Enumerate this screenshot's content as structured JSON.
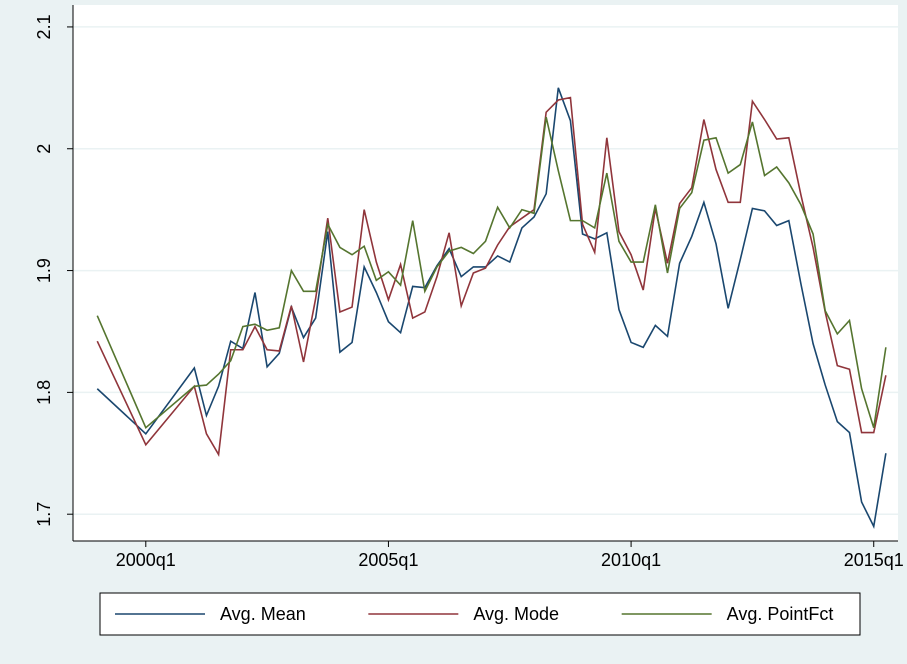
{
  "chart_data": {
    "type": "line",
    "x": [
      "1999q1",
      "2000q1",
      "2001q1",
      "2001q2",
      "2001q3",
      "2001q4",
      "2002q1",
      "2002q2",
      "2002q3",
      "2002q4",
      "2003q1",
      "2003q2",
      "2003q3",
      "2003q4",
      "2004q1",
      "2004q2",
      "2004q3",
      "2004q4",
      "2005q1",
      "2005q2",
      "2005q3",
      "2005q4",
      "2006q1",
      "2006q2",
      "2006q3",
      "2006q4",
      "2007q1",
      "2007q2",
      "2007q3",
      "2007q4",
      "2008q1",
      "2008q2",
      "2008q3",
      "2008q4",
      "2009q1",
      "2009q2",
      "2009q3",
      "2009q4",
      "2010q1",
      "2010q2",
      "2010q3",
      "2010q4",
      "2011q1",
      "2011q2",
      "2011q3",
      "2011q4",
      "2012q1",
      "2012q2",
      "2012q3",
      "2012q4",
      "2013q1",
      "2013q2",
      "2013q3",
      "2013q4",
      "2014q1",
      "2014q2",
      "2014q3",
      "2014q4",
      "2015q1",
      "2015q2"
    ],
    "series": [
      {
        "name": "Avg. Mean",
        "color": "#1a476f",
        "values": [
          1.803,
          1.766,
          1.82,
          1.781,
          1.805,
          1.842,
          1.836,
          1.882,
          1.821,
          1.832,
          1.87,
          1.845,
          1.861,
          1.932,
          1.833,
          1.841,
          1.903,
          1.882,
          1.858,
          1.849,
          1.887,
          1.886,
          1.904,
          1.918,
          1.895,
          1.903,
          1.903,
          1.912,
          1.907,
          1.935,
          1.944,
          1.963,
          2.05,
          2.023,
          1.93,
          1.926,
          1.931,
          1.868,
          1.841,
          1.837,
          1.855,
          1.846,
          1.906,
          1.928,
          1.956,
          1.922,
          1.869,
          1.909,
          1.951,
          1.949,
          1.937,
          1.941,
          1.889,
          1.84,
          1.806,
          1.776,
          1.767,
          1.71,
          1.69,
          1.75
        ]
      },
      {
        "name": "Avg. Mode",
        "color": "#90353b",
        "values": [
          1.842,
          1.757,
          1.805,
          1.766,
          1.749,
          1.835,
          1.835,
          1.854,
          1.835,
          1.834,
          1.871,
          1.825,
          1.877,
          1.943,
          1.866,
          1.87,
          1.95,
          1.907,
          1.876,
          1.905,
          1.861,
          1.866,
          1.895,
          1.931,
          1.871,
          1.898,
          1.902,
          1.921,
          1.936,
          1.943,
          1.95,
          2.03,
          2.04,
          2.042,
          1.938,
          1.915,
          2.009,
          1.932,
          1.913,
          1.884,
          1.951,
          1.906,
          1.955,
          1.968,
          2.024,
          1.983,
          1.956,
          1.956,
          2.039,
          2.024,
          2.008,
          2.009,
          1.962,
          1.919,
          1.866,
          1.822,
          1.819,
          1.767,
          1.767,
          1.814
        ]
      },
      {
        "name": "Avg. PointFct",
        "color": "#55752f",
        "values": [
          1.863,
          1.771,
          1.805,
          1.806,
          1.815,
          1.826,
          1.854,
          1.856,
          1.851,
          1.853,
          1.9,
          1.883,
          1.883,
          1.938,
          1.919,
          1.913,
          1.92,
          1.892,
          1.899,
          1.888,
          1.941,
          1.883,
          1.903,
          1.916,
          1.919,
          1.914,
          1.924,
          1.952,
          1.935,
          1.95,
          1.947,
          2.026,
          1.982,
          1.941,
          1.941,
          1.935,
          1.98,
          1.924,
          1.907,
          1.907,
          1.954,
          1.898,
          1.951,
          1.964,
          2.007,
          2.009,
          1.98,
          1.987,
          2.022,
          1.978,
          1.985,
          1.972,
          1.954,
          1.93,
          1.867,
          1.848,
          1.859,
          1.803,
          1.771,
          1.837
        ]
      }
    ],
    "xlim": [
      "1998q3",
      "2015q3"
    ],
    "xticks": [
      "2000q1",
      "2005q1",
      "2010q1",
      "2015q1"
    ],
    "ylim": [
      1.678,
      2.118
    ],
    "yticks": [
      1.7,
      1.8,
      1.9,
      2,
      2.1
    ],
    "grid": true,
    "legend": "bottom"
  }
}
